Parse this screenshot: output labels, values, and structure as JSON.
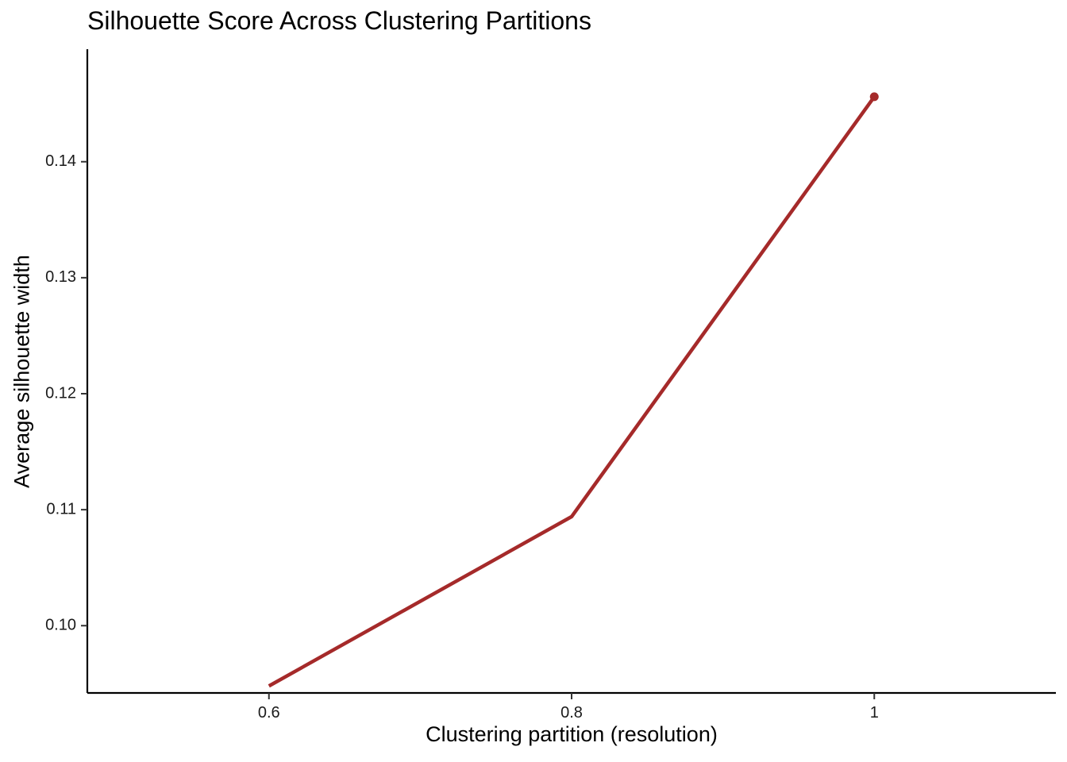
{
  "chart_data": {
    "type": "line",
    "title": "Silhouette Score Across Clustering Partitions",
    "xlabel": "Clustering partition (resolution)",
    "ylabel": "Average silhouette width",
    "x_ticks": [
      {
        "value": 0.6,
        "label": "0.6"
      },
      {
        "value": 0.8,
        "label": "0.8"
      },
      {
        "value": 1.0,
        "label": "1"
      }
    ],
    "y_ticks": [
      {
        "value": 0.1,
        "label": "0.10"
      },
      {
        "value": 0.11,
        "label": "0.11"
      },
      {
        "value": 0.12,
        "label": "0.12"
      },
      {
        "value": 0.13,
        "label": "0.13"
      },
      {
        "value": 0.14,
        "label": "0.14"
      }
    ],
    "xlim": [
      0.48,
      1.12
    ],
    "ylim": [
      0.0942,
      0.1497
    ],
    "grid": false,
    "series": [
      {
        "color": "#A52A2A",
        "x": [
          0.6,
          0.8,
          1.0
        ],
        "y": [
          0.0948,
          0.1094,
          0.1456
        ],
        "highlight_point": {
          "x": 1.0,
          "y": 0.1456
        }
      }
    ]
  }
}
